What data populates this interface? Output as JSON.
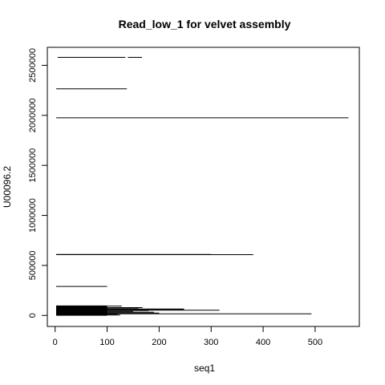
{
  "chart_data": {
    "type": "segments",
    "title": "Read_low_1 for velvet assembly",
    "xlabel": "seq1",
    "ylabel": "U00096.2",
    "xlim": [
      -15,
      585
    ],
    "ylim": [
      -110000,
      2680000
    ],
    "x_ticks": [
      0,
      100,
      200,
      300,
      400,
      500
    ],
    "y_ticks": [
      0,
      500000,
      1000000,
      1500000,
      2000000,
      2500000
    ],
    "grid": false,
    "segments": [
      {
        "x0": 5,
        "x1": 135,
        "y": 2580000
      },
      {
        "x0": 140,
        "x1": 167,
        "y": 2580000
      },
      {
        "x0": 2,
        "x1": 138,
        "y": 2265000
      },
      {
        "x0": 2,
        "x1": 564,
        "y": 1975000
      },
      {
        "x0": 2,
        "x1": 300,
        "y": 610000
      },
      {
        "x0": 2,
        "x1": 381,
        "y": 608000
      },
      {
        "x0": 2,
        "x1": 100,
        "y": 290000
      },
      {
        "x0": 2,
        "x1": 100,
        "y": 95000
      },
      {
        "x0": 2,
        "x1": 128,
        "y": 93000
      },
      {
        "x0": 2,
        "x1": 100,
        "y": 88000
      },
      {
        "x0": 2,
        "x1": 100,
        "y": 82000
      },
      {
        "x0": 2,
        "x1": 168,
        "y": 78000
      },
      {
        "x0": 2,
        "x1": 100,
        "y": 72000
      },
      {
        "x0": 2,
        "x1": 160,
        "y": 68000
      },
      {
        "x0": 2,
        "x1": 248,
        "y": 64000
      },
      {
        "x0": 2,
        "x1": 248,
        "y": 60000
      },
      {
        "x0": 2,
        "x1": 100,
        "y": 56000
      },
      {
        "x0": 2,
        "x1": 316,
        "y": 52000
      },
      {
        "x0": 2,
        "x1": 180,
        "y": 48000
      },
      {
        "x0": 2,
        "x1": 100,
        "y": 44000
      },
      {
        "x0": 2,
        "x1": 150,
        "y": 40000
      },
      {
        "x0": 2,
        "x1": 100,
        "y": 36000
      },
      {
        "x0": 2,
        "x1": 190,
        "y": 32000
      },
      {
        "x0": 2,
        "x1": 100,
        "y": 28000
      },
      {
        "x0": 2,
        "x1": 200,
        "y": 24000
      },
      {
        "x0": 2,
        "x1": 100,
        "y": 20000
      },
      {
        "x0": 2,
        "x1": 493,
        "y": 16000
      },
      {
        "x0": 2,
        "x1": 120,
        "y": 12000
      },
      {
        "x0": 2,
        "x1": 100,
        "y": 8000
      },
      {
        "x0": 2,
        "x1": 125,
        "y": 4000
      },
      {
        "x0": 2,
        "x1": 100,
        "y": 1000
      }
    ]
  }
}
